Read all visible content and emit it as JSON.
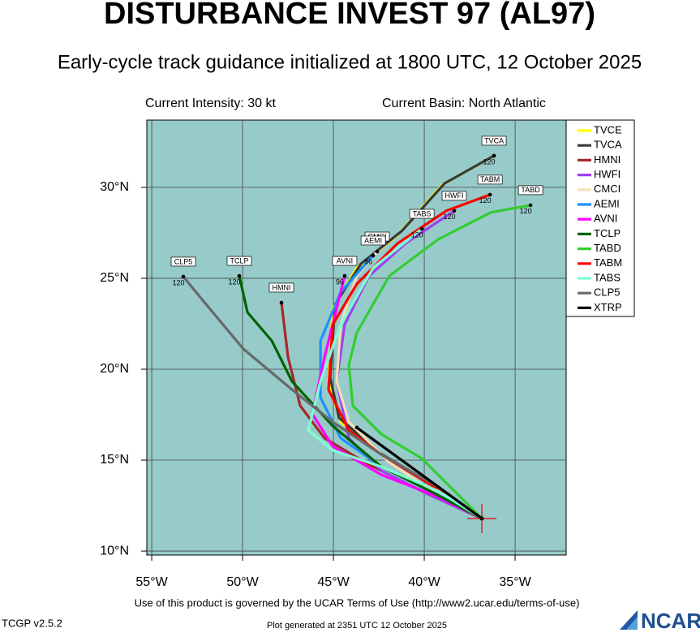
{
  "chart_data": {
    "type": "line",
    "title": "DISTURBANCE INVEST 97 (AL97)",
    "subtitle": "Early-cycle track guidance initialized at 1800 UTC, 12 October 2025",
    "intensity_text": "Current Intensity: 30 kt",
    "basin_text": "Current Basin: North Atlantic",
    "terms_text": "Use of this product is governed by the UCAR Terms of Use (http://www2.ucar.edu/terms-of-use)",
    "version_text": "TCGP v2.5.2",
    "generated_text": "Plot generated at 2351 UTC   12 October 2025",
    "logo_text": "NCAR",
    "xlim": [
      -55.27,
      -32.19
    ],
    "ylim": [
      9.78,
      33.7
    ],
    "xticks": [
      {
        "value": -55,
        "label": "55°W"
      },
      {
        "value": -50,
        "label": "50°W"
      },
      {
        "value": -45,
        "label": "45°W"
      },
      {
        "value": -40,
        "label": "40°W"
      },
      {
        "value": -35,
        "label": "35°W"
      }
    ],
    "yticks": [
      {
        "value": 10,
        "label": "10°N"
      },
      {
        "value": 15,
        "label": "15°N"
      },
      {
        "value": 20,
        "label": "20°N"
      },
      {
        "value": 25,
        "label": "25°N"
      },
      {
        "value": 30,
        "label": "30°N"
      }
    ],
    "grid": true,
    "legend": "right",
    "storm_position": {
      "x": -36.83,
      "y": 11.79,
      "color": "#e0202a"
    },
    "series": [
      {
        "name": "TVCE",
        "color": "#ffff00",
        "x": [
          -36.83,
          -39.24,
          -42.37,
          -44.6,
          -45.27,
          -45.04,
          -43.71,
          -41.47,
          -39.02,
          -36.16
        ],
        "values": [
          11.79,
          13.53,
          15.31,
          17.1,
          19.33,
          23.35,
          25.58,
          27.37,
          30.13,
          31.74
        ]
      },
      {
        "name": "TVCA",
        "color": "#3a3a3a",
        "x": [
          -36.83,
          -39.46,
          -42.46,
          -44.69,
          -45.18,
          -44.91,
          -43.48,
          -41.25,
          -38.88,
          -36.16
        ],
        "values": [
          11.79,
          13.62,
          15.4,
          17.32,
          19.55,
          23.57,
          25.8,
          27.59,
          30.22,
          31.74
        ],
        "end_tag": true,
        "end_label": "120"
      },
      {
        "name": "HMNI",
        "color": "#a52a2a",
        "x": [
          -36.83,
          -39.69,
          -43.26,
          -45.49,
          -46.83,
          -47.5,
          -47.86
        ],
        "values": [
          11.79,
          13.08,
          14.87,
          16.21,
          17.99,
          20.67,
          23.66
        ],
        "end_tag": true
      },
      {
        "name": "HWFI",
        "color": "#a040f0",
        "x": [
          -36.83,
          -39.69,
          -42.37,
          -44.15,
          -44.82,
          -44.38,
          -43.04,
          -41.03,
          -38.35
        ],
        "values": [
          11.79,
          13.08,
          14.42,
          16.21,
          19.33,
          22.46,
          25.13,
          26.92,
          28.71
        ],
        "end_tag": true,
        "end_label": "120"
      },
      {
        "name": "CMCI",
        "color": "#f5deb3",
        "x": [
          -36.83,
          -39.24,
          -41.92,
          -44.15,
          -44.82,
          -44.6,
          -43.71,
          -42.59
        ],
        "values": [
          11.79,
          13.08,
          14.87,
          17.1,
          19.33,
          22.46,
          25.13,
          26.47
        ],
        "end_tag": true
      },
      {
        "name": "AEMI",
        "color": "#1e90ff",
        "x": [
          -36.83,
          -39.24,
          -42.37,
          -44.6,
          -45.71,
          -45.71,
          -44.6,
          -42.81
        ],
        "values": [
          11.79,
          13.08,
          14.64,
          16.21,
          18.44,
          21.56,
          24.24,
          26.25
        ],
        "end_tag": true,
        "end_label": "96"
      },
      {
        "name": "AVNI",
        "color": "#ff00ff",
        "x": [
          -36.83,
          -39.24,
          -42.37,
          -45.04,
          -46.16,
          -45.49,
          -44.82,
          -44.38
        ],
        "values": [
          11.79,
          12.99,
          14.2,
          15.76,
          17.54,
          20.67,
          23.35,
          25.13
        ],
        "end_tag": true,
        "end_label": "96"
      },
      {
        "name": "TCLP",
        "color": "#006400",
        "x": [
          -36.83,
          -39.69,
          -42.37,
          -45.04,
          -47.28,
          -48.39,
          -49.73,
          -50.18
        ],
        "values": [
          11.79,
          13.3,
          14.64,
          16.88,
          19.33,
          21.56,
          23.13,
          25.13
        ],
        "end_tag": true,
        "end_label": "120"
      },
      {
        "name": "TABD",
        "color": "#32cd32",
        "x": [
          -36.83,
          -38.57,
          -40.13,
          -42.37,
          -43.93,
          -44.15,
          -43.71,
          -41.92,
          -39.24,
          -36.34,
          -34.15
        ],
        "values": [
          11.79,
          13.53,
          15.09,
          16.43,
          17.99,
          20.22,
          22.01,
          25.13,
          27.14,
          28.62,
          29.02
        ],
        "end_tag": true,
        "end_label": "120"
      },
      {
        "name": "TABM",
        "color": "#ff0000",
        "x": [
          -36.83,
          -39.46,
          -42.37,
          -44.15,
          -45.27,
          -45.04,
          -43.71,
          -41.47,
          -38.79,
          -36.38
        ],
        "values": [
          11.79,
          13.53,
          15.31,
          16.65,
          18.88,
          22.46,
          24.69,
          26.92,
          28.71,
          29.6
        ],
        "end_tag": true,
        "end_label": "120"
      },
      {
        "name": "TABS",
        "color": "#7fffd4",
        "x": [
          -36.83,
          -39.24,
          -42.37,
          -45.04,
          -46.38,
          -45.71,
          -44.6,
          -42.81,
          -40.13
        ],
        "values": [
          11.79,
          13.3,
          14.64,
          15.54,
          16.65,
          19.33,
          22.46,
          25.58,
          27.72
        ],
        "end_tag": true,
        "end_label": "120"
      },
      {
        "name": "CLP5",
        "color": "#696969",
        "x": [
          -36.83,
          -39.24,
          -42.37,
          -45.04,
          -47.28,
          -49.96,
          -52.19,
          -53.26
        ],
        "values": [
          11.79,
          13.53,
          15.31,
          17.1,
          18.88,
          21.12,
          23.79,
          25.09
        ],
        "end_tag": true,
        "end_label": "120"
      },
      {
        "name": "XTRP",
        "color": "#000000",
        "x": [
          -36.83,
          -43.71
        ],
        "values": [
          11.79,
          16.79
        ]
      }
    ]
  }
}
